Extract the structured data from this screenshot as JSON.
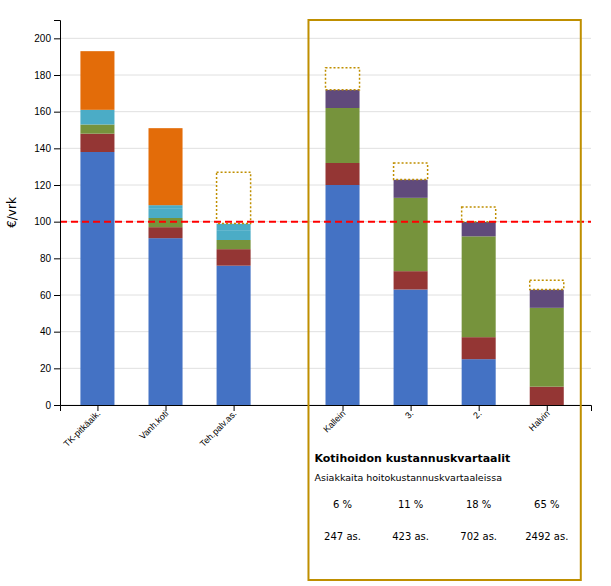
{
  "chart_data": {
    "type": "bar",
    "stacked": true,
    "grid": true,
    "categories": [
      "TK-pitkäaik.",
      "Vanh.koti",
      "Teh.palv.as.",
      "Kallein",
      "3.",
      "2.",
      "Halvin"
    ],
    "ylabel": "€/vrk",
    "ylim": [
      0,
      210
    ],
    "yticks": [
      0,
      20,
      40,
      60,
      80,
      100,
      120,
      140,
      160,
      180,
      200
    ],
    "series": [
      {
        "color": "#4472C4",
        "values": [
          138,
          91,
          76,
          120,
          63,
          25,
          0
        ]
      },
      {
        "color": "#943634",
        "values": [
          10,
          6,
          9,
          12,
          10,
          12,
          10
        ]
      },
      {
        "color": "#76933C",
        "values": [
          5,
          5,
          5,
          30,
          40,
          55,
          43
        ]
      },
      {
        "color": "#4BACC6",
        "values": [
          3,
          5,
          5,
          null,
          null,
          null,
          null
        ]
      },
      {
        "color": "#4BACC6",
        "values": [
          5,
          2,
          4,
          null,
          null,
          null,
          null
        ]
      },
      {
        "color": "#E36C09",
        "values": [
          32,
          42,
          0,
          null,
          null,
          null,
          null
        ]
      },
      {
        "color": "#604A7B",
        "values": [
          null,
          null,
          null,
          10,
          10,
          8,
          10
        ]
      },
      {
        "color": "#BF8F00",
        "line_style": "dotted",
        "values": [
          0,
          0,
          28,
          12,
          9,
          8,
          5
        ]
      }
    ],
    "reference_line": {
      "value": 100,
      "color": "#FF0000",
      "line_style": "dashed"
    },
    "right_box": {
      "title": "Kotihoidon kustannuskvartaalit",
      "subtitle": "Asiakkaita hoitokustannuskvartaaleissa",
      "pct_labels": [
        null,
        null,
        null,
        "6 %",
        "11 %",
        "18 %",
        "65 %"
      ],
      "count_labels": [
        null,
        null,
        null,
        "247 as.",
        "423 as.",
        "702 as.",
        "2492 as."
      ],
      "color": "#BF8F00"
    }
  }
}
